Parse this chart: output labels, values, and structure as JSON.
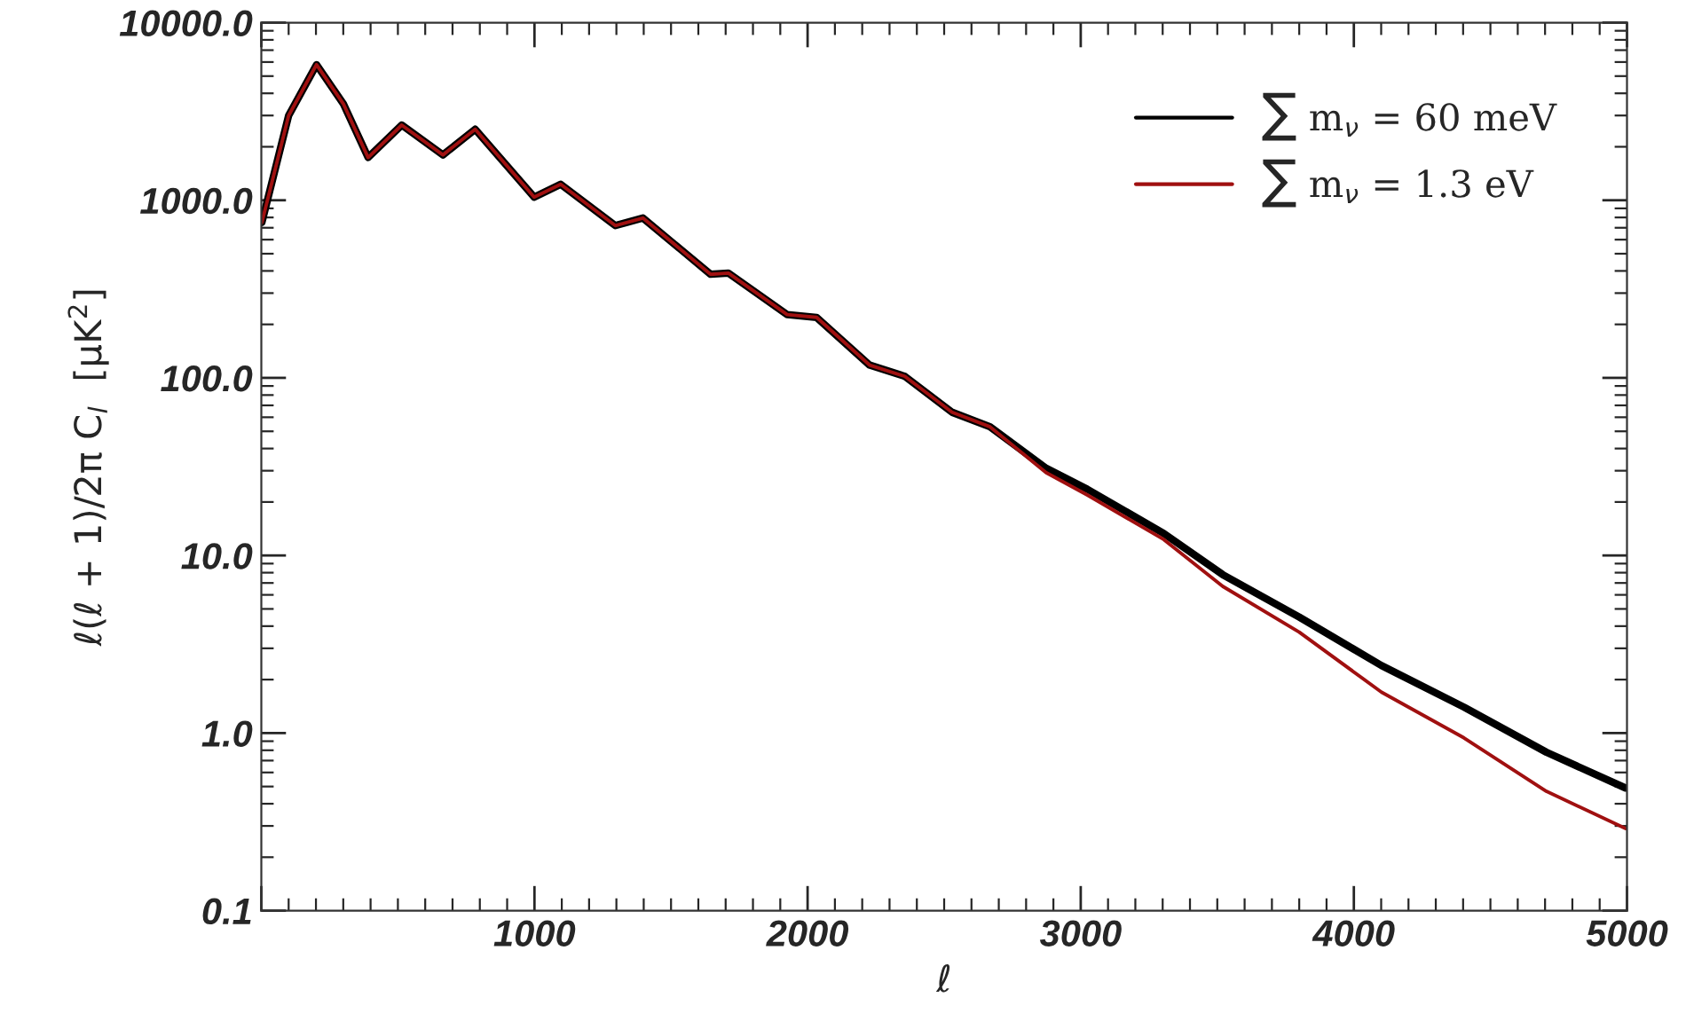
{
  "chart_data": {
    "type": "line",
    "xlabel": "ℓ",
    "ylabel": "ℓ(ℓ + 1)/2π C$_{l}$  [μK$^{2}$]",
    "log": "y",
    "xlim": [
      0,
      5000
    ],
    "xticks": [
      {
        "value": 0,
        "label": null
      },
      1000,
      2000,
      3000,
      4000,
      5000
    ],
    "ylim": [
      0.1,
      10000
    ],
    "yticks": [
      {
        "value": 0.1,
        "label": "0.1"
      },
      {
        "value": 1,
        "label": "1.0"
      },
      {
        "value": 10,
        "label": "10.0"
      },
      {
        "value": 100,
        "label": "100.0"
      },
      {
        "value": 1000,
        "label": "1000.0"
      },
      {
        "value": 10000,
        "label": "10000.0"
      }
    ],
    "grid": false,
    "legend": "top right",
    "marker": "none",
    "line_style": "solid",
    "series": [
      {
        "name": "∑ m$_{ν}$ = 60 meV",
        "color": "#000000",
        "x": [
          2,
          100,
          202,
          300,
          391,
          514,
          665,
          783,
          999,
          1096,
          1296,
          1397,
          1645,
          1710,
          1925,
          2033,
          2227,
          2356,
          2529,
          2668,
          2873,
          3024,
          3304,
          3520,
          3800,
          4101,
          4403,
          4705,
          4995
        ],
        "values": [
          750,
          3000,
          5800,
          3500,
          1740,
          2650,
          1800,
          2510,
          1040,
          1230,
          720,
          794,
          383,
          389,
          227,
          219,
          118,
          102,
          64,
          53,
          31,
          23.6,
          13.3,
          7.8,
          4.5,
          2.4,
          1.4,
          0.78,
          0.49
        ]
      },
      {
        "name": "∑ m$_{ν}$ = 1.3 eV",
        "color": "#a01010",
        "x": [
          2,
          100,
          202,
          300,
          391,
          514,
          665,
          783,
          999,
          1096,
          1296,
          1397,
          1645,
          1710,
          1925,
          2033,
          2227,
          2356,
          2529,
          2668,
          2873,
          3024,
          3304,
          3520,
          3800,
          4101,
          4403,
          4705,
          4995
        ],
        "values": [
          750,
          3000,
          5800,
          3500,
          1740,
          2650,
          1800,
          2510,
          1040,
          1230,
          720,
          794,
          383,
          389,
          227,
          219,
          118,
          102,
          64,
          53,
          29.3,
          21.9,
          12.3,
          6.7,
          3.7,
          1.7,
          0.94,
          0.47,
          0.29
        ]
      }
    ]
  }
}
